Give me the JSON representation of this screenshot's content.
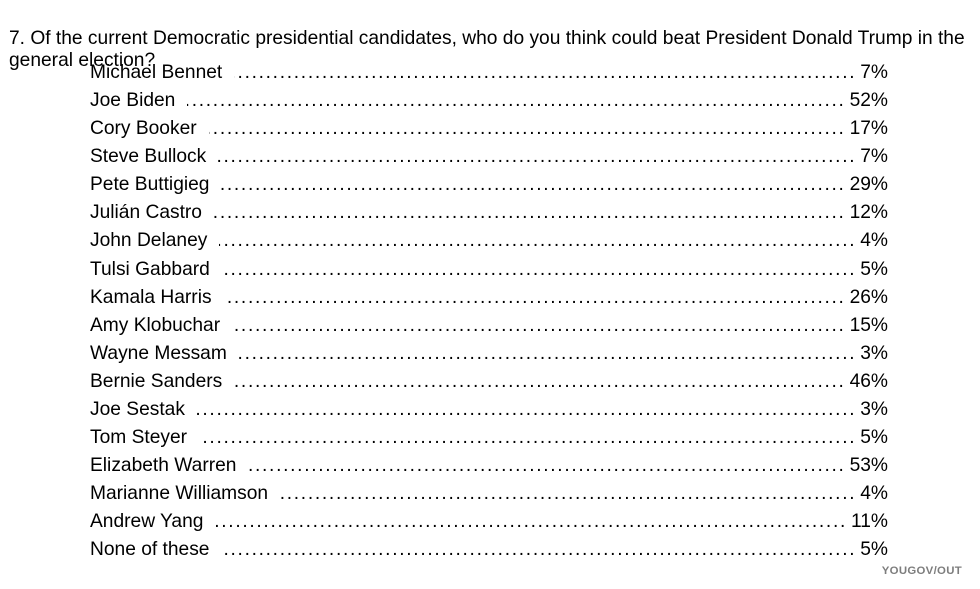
{
  "question": {
    "text": "7. Of the current Democratic presidential candidates, who do you think could beat President Donald Trump in the general election?"
  },
  "results": {
    "rows": [
      {
        "label": "Michael Bennet",
        "value": "7%"
      },
      {
        "label": "Joe Biden",
        "value": "52%"
      },
      {
        "label": "Cory Booker",
        "value": "17%"
      },
      {
        "label": "Steve Bullock",
        "value": "7%"
      },
      {
        "label": "Pete Buttigieg",
        "value": "29%"
      },
      {
        "label": "Julián Castro",
        "value": "12%"
      },
      {
        "label": "John Delaney",
        "value": "4%"
      },
      {
        "label": "Tulsi Gabbard",
        "value": "5%"
      },
      {
        "label": "Kamala Harris",
        "value": "26%"
      },
      {
        "label": "Amy Klobuchar",
        "value": "15%"
      },
      {
        "label": "Wayne Messam",
        "value": "3%"
      },
      {
        "label": "Bernie Sanders",
        "value": "46%"
      },
      {
        "label": "Joe Sestak",
        "value": "3%"
      },
      {
        "label": "Tom Steyer",
        "value": "5%"
      },
      {
        "label": "Elizabeth Warren",
        "value": "53%"
      },
      {
        "label": "Marianne Williamson",
        "value": "4%"
      },
      {
        "label": "Andrew Yang",
        "value": "11%"
      },
      {
        "label": "None of these",
        "value": "5%"
      }
    ]
  },
  "footer": {
    "source": "YOUGOV/OUT"
  },
  "colors": {
    "text": "#000000",
    "footer_text": "#7d7d7d",
    "background": "#ffffff"
  },
  "chart_data": {
    "type": "table",
    "title": "7. Of the current Democratic presidential candidates, who do you think could beat President Donald Trump in the general election?",
    "categories": [
      "Michael Bennet",
      "Joe Biden",
      "Cory Booker",
      "Steve Bullock",
      "Pete Buttigieg",
      "Julián Castro",
      "John Delaney",
      "Tulsi Gabbard",
      "Kamala Harris",
      "Amy Klobuchar",
      "Wayne Messam",
      "Bernie Sanders",
      "Joe Sestak",
      "Tom Steyer",
      "Elizabeth Warren",
      "Marianne Williamson",
      "Andrew Yang",
      "None of these"
    ],
    "values": [
      7,
      52,
      17,
      7,
      29,
      12,
      4,
      5,
      26,
      15,
      3,
      46,
      3,
      5,
      53,
      4,
      11,
      5
    ],
    "value_unit": "%",
    "source": "YOUGOV/OUT"
  }
}
